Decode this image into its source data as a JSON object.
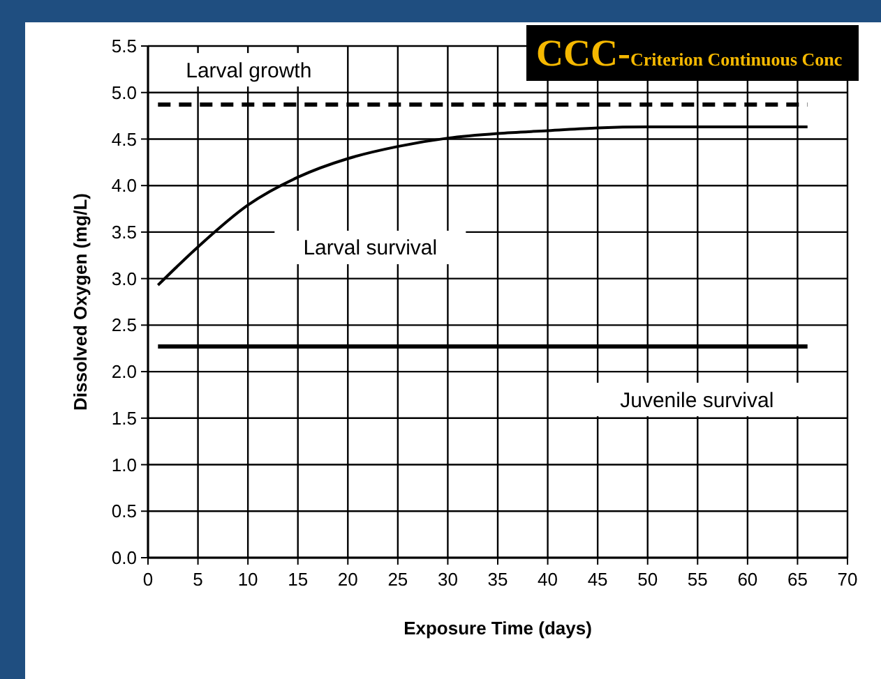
{
  "chart_data": {
    "type": "line",
    "title": "CCC-",
    "subtitle": "Criterion Continuous Conc",
    "xlabel": "Exposure Time (days)",
    "ylabel": "Dissolved Oxygen (mg/L)",
    "xlim": [
      0,
      70
    ],
    "xticks": [
      0,
      5,
      10,
      15,
      20,
      25,
      30,
      35,
      40,
      45,
      50,
      55,
      60,
      65,
      70
    ],
    "ylim": [
      0,
      5.5
    ],
    "yticks": [
      {
        "value": 0,
        "label": "0.0"
      },
      {
        "value": 0.5,
        "label": "0.5"
      },
      {
        "value": 1,
        "label": "1.0"
      },
      {
        "value": 1.5,
        "label": "1.5"
      },
      {
        "value": 2,
        "label": "2.0"
      },
      {
        "value": 2.5,
        "label": "2.5"
      },
      {
        "value": 3,
        "label": "3.0"
      },
      {
        "value": 3.5,
        "label": "3.5"
      },
      {
        "value": 4,
        "label": "4.0"
      },
      {
        "value": 4.5,
        "label": "4.5"
      },
      {
        "value": 5,
        "label": "5.0"
      },
      {
        "value": 5.5,
        "label": "5.5"
      }
    ],
    "grid": true,
    "marker": "none",
    "series": [
      {
        "name": "Larval growth",
        "color": "#000000",
        "line_style": "dashed",
        "x": [
          1,
          66
        ],
        "values": [
          4.87,
          4.87
        ]
      },
      {
        "name": "Larval survival",
        "color": "#000000",
        "line_style": "solid",
        "x": [
          1,
          5,
          10,
          15,
          20,
          25,
          30,
          35,
          40,
          45,
          50,
          55,
          60,
          66
        ],
        "values": [
          2.93,
          3.34,
          3.79,
          4.09,
          4.29,
          4.42,
          4.51,
          4.56,
          4.59,
          4.62,
          4.63,
          4.63,
          4.63,
          4.63
        ]
      },
      {
        "name": "Juvenile survival",
        "color": "#000000",
        "line_style": "solid",
        "x": [
          1,
          66
        ],
        "values": [
          2.27,
          2.27
        ]
      }
    ]
  }
}
